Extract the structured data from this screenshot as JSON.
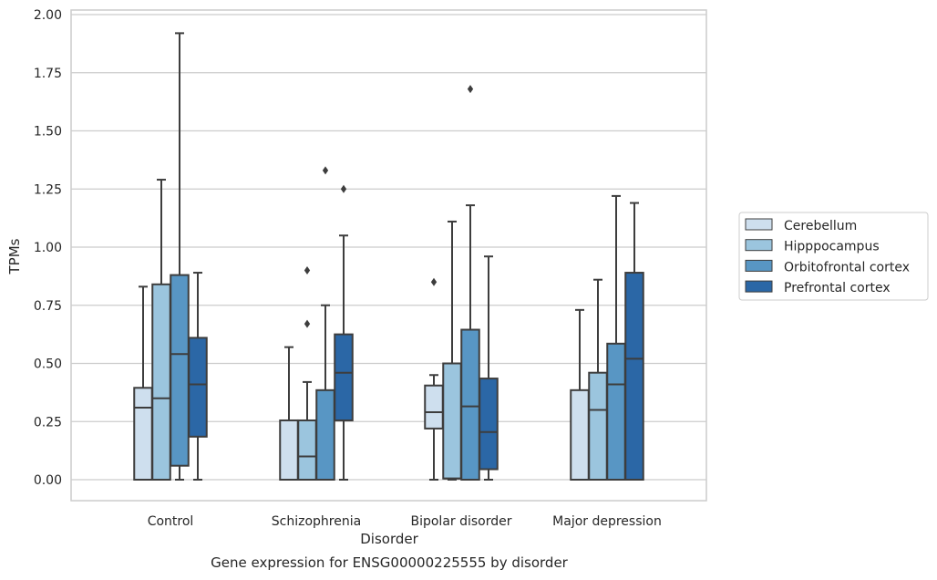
{
  "chart_data": {
    "type": "box",
    "title": "Gene expression for ENSG00000225555 by disorder",
    "xlabel": "Disorder",
    "ylabel": "TPMs",
    "ylim": [
      -0.09,
      2.02
    ],
    "yticks": [
      0.0,
      0.25,
      0.5,
      0.75,
      1.0,
      1.25,
      1.5,
      1.75,
      2.0
    ],
    "ytick_labels": [
      "0.00",
      "0.25",
      "0.50",
      "0.75",
      "1.00",
      "1.25",
      "1.50",
      "1.75",
      "2.00"
    ],
    "grid": true,
    "legend_position": "right",
    "categories": [
      "Control",
      "Schizophrenia",
      "Bipolar disorder",
      "Major depression"
    ],
    "series": [
      {
        "name": "Cerebellum",
        "color": "#cedfee",
        "boxes": [
          {
            "whislo": 0.0,
            "q1": 0.0,
            "med": 0.31,
            "q3": 0.395,
            "whishi": 0.83,
            "fliers": []
          },
          {
            "whislo": 0.0,
            "q1": 0.0,
            "med": 0.0,
            "q3": 0.255,
            "whishi": 0.57,
            "fliers": []
          },
          {
            "whislo": 0.0,
            "q1": 0.22,
            "med": 0.29,
            "q3": 0.405,
            "whishi": 0.45,
            "fliers": [
              0.85
            ]
          },
          {
            "whislo": 0.0,
            "q1": 0.0,
            "med": 0.0,
            "q3": 0.385,
            "whishi": 0.73,
            "fliers": []
          }
        ]
      },
      {
        "name": "Hipppocampus",
        "color": "#9bc5de",
        "boxes": [
          {
            "whislo": 0.0,
            "q1": 0.0,
            "med": 0.35,
            "q3": 0.84,
            "whishi": 1.29,
            "fliers": []
          },
          {
            "whislo": 0.0,
            "q1": 0.0,
            "med": 0.1,
            "q3": 0.255,
            "whishi": 0.42,
            "fliers": [
              0.67,
              0.9
            ]
          },
          {
            "whislo": 0.0,
            "q1": 0.005,
            "med": 0.005,
            "q3": 0.5,
            "whishi": 1.11,
            "fliers": []
          },
          {
            "whislo": 0.0,
            "q1": 0.0,
            "med": 0.3,
            "q3": 0.46,
            "whishi": 0.86,
            "fliers": []
          }
        ]
      },
      {
        "name": "Orbitofrontal cortex",
        "color": "#5896c4",
        "boxes": [
          {
            "whislo": 0.0,
            "q1": 0.06,
            "med": 0.54,
            "q3": 0.88,
            "whishi": 1.92,
            "fliers": []
          },
          {
            "whislo": 0.0,
            "q1": 0.0,
            "med": 0.0,
            "q3": 0.385,
            "whishi": 0.75,
            "fliers": [
              1.33
            ]
          },
          {
            "whislo": 0.0,
            "q1": 0.0,
            "med": 0.315,
            "q3": 0.645,
            "whishi": 1.18,
            "fliers": [
              1.68
            ]
          },
          {
            "whislo": 0.0,
            "q1": 0.0,
            "med": 0.41,
            "q3": 0.585,
            "whishi": 1.22,
            "fliers": []
          }
        ]
      },
      {
        "name": "Prefrontal cortex",
        "color": "#2b67a6",
        "boxes": [
          {
            "whislo": 0.0,
            "q1": 0.185,
            "med": 0.41,
            "q3": 0.61,
            "whishi": 0.89,
            "fliers": []
          },
          {
            "whislo": 0.0,
            "q1": 0.255,
            "med": 0.46,
            "q3": 0.625,
            "whishi": 1.05,
            "fliers": [
              1.25
            ]
          },
          {
            "whislo": 0.0,
            "q1": 0.045,
            "med": 0.205,
            "q3": 0.435,
            "whishi": 0.96,
            "fliers": []
          },
          {
            "whislo": 0.0,
            "q1": 0.0,
            "med": 0.52,
            "q3": 0.89,
            "whishi": 1.19,
            "fliers": []
          }
        ]
      }
    ]
  }
}
